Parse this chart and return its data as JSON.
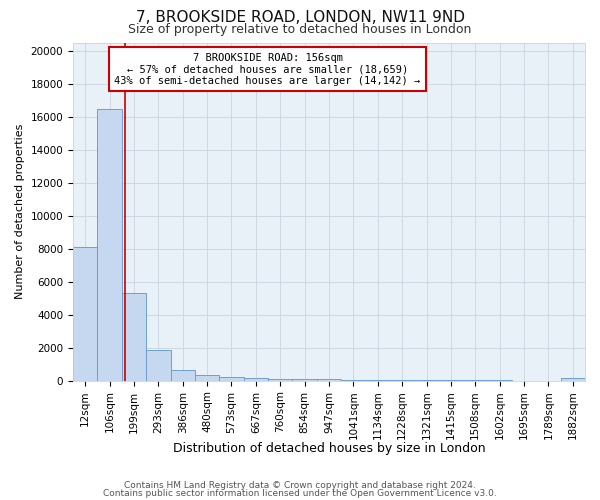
{
  "title": "7, BROOKSIDE ROAD, LONDON, NW11 9ND",
  "subtitle": "Size of property relative to detached houses in London",
  "xlabel": "Distribution of detached houses by size in London",
  "ylabel": "Number of detached properties",
  "bar_labels": [
    "12sqm",
    "106sqm",
    "199sqm",
    "293sqm",
    "386sqm",
    "480sqm",
    "573sqm",
    "667sqm",
    "760sqm",
    "854sqm",
    "947sqm",
    "1041sqm",
    "1134sqm",
    "1228sqm",
    "1321sqm",
    "1415sqm",
    "1508sqm",
    "1602sqm",
    "1695sqm",
    "1789sqm",
    "1882sqm"
  ],
  "bar_values": [
    8100,
    16500,
    5300,
    1850,
    680,
    330,
    250,
    140,
    130,
    100,
    80,
    60,
    50,
    40,
    40,
    30,
    25,
    20,
    15,
    15,
    160
  ],
  "bar_color": "#c5d8ef",
  "bar_edge_color": "#6ca0d0",
  "property_line_x": 1.63,
  "annotation_text": "7 BROOKSIDE ROAD: 156sqm\n← 57% of detached houses are smaller (18,659)\n43% of semi-detached houses are larger (14,142) →",
  "annotation_box_color": "#ffffff",
  "annotation_box_edge": "#cc0000",
  "vline_color": "#cc0000",
  "ylim": [
    0,
    20500
  ],
  "yticks": [
    0,
    2000,
    4000,
    6000,
    8000,
    10000,
    12000,
    14000,
    16000,
    18000,
    20000
  ],
  "footer1": "Contains HM Land Registry data © Crown copyright and database right 2024.",
  "footer2": "Contains public sector information licensed under the Open Government Licence v3.0.",
  "bg_color": "#ffffff",
  "plot_bg_color": "#e8f0f8",
  "grid_color": "#c8d4e0",
  "title_fontsize": 11,
  "subtitle_fontsize": 9,
  "ylabel_fontsize": 8,
  "xlabel_fontsize": 9,
  "tick_fontsize": 7.5,
  "annot_fontsize": 7.5,
  "footer_fontsize": 6.5
}
